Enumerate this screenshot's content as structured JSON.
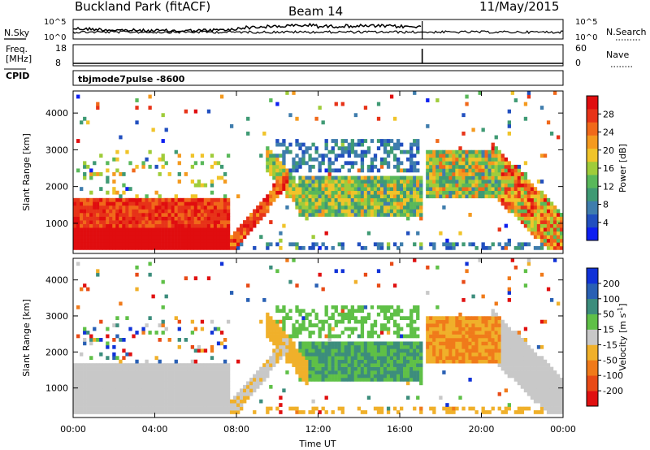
{
  "header": {
    "station": "Buckland Park (fitACF)",
    "beam": "Beam 14",
    "date": "11/May/2015"
  },
  "panel_labels": {
    "nsky": "N.Sky",
    "nsearch": "N.Search",
    "freq_line1": "Freq.",
    "freq_line2": "[MHz]",
    "nave": "Nave",
    "cpid": "CPID",
    "cpid_value": "tbjmode7pulse  -8600"
  },
  "chart_data": [
    {
      "type": "line",
      "name": "noise-panel",
      "left_ticks": [
        "10^5",
        "10^0"
      ],
      "right_ticks": [
        "10^5",
        "10^0"
      ],
      "ylabel_left": "N.Sky",
      "ylabel_right": "N.Search",
      "data_gap_utc": [
        17.1,
        17.25
      ],
      "description_note": ""
    },
    {
      "type": "line",
      "name": "freq-panel",
      "left_ticks": [
        18,
        8
      ],
      "right_ticks": [
        60,
        0
      ],
      "ylabel_left": "Freq. [MHz]",
      "ylabel_right": "Nave",
      "freq_mhz": 8,
      "nave": 0
    },
    {
      "type": "heatmap",
      "name": "power",
      "x": {
        "label": "Time UT",
        "range_hours": [
          0,
          24
        ],
        "tick_labels": [
          "00:00",
          "04:00",
          "08:00",
          "12:00",
          "16:00",
          "20:00",
          "00:00"
        ]
      },
      "y": {
        "label": "Slant Range [km]",
        "range_km": [
          180,
          4600
        ],
        "tick_values": [
          1000,
          2000,
          3000,
          4000
        ]
      },
      "colorbar": {
        "label": "Power [dB]",
        "range": [
          0,
          32
        ],
        "tick_values": [
          4,
          8,
          12,
          16,
          20,
          24,
          28
        ],
        "colors": [
          "#0d1ff0",
          "#214fbf",
          "#3f7dad",
          "#3f9a74",
          "#59b85a",
          "#9fcc3a",
          "#f0c42a",
          "#f49a1f",
          "#f0691a",
          "#e73318",
          "#e00d0f"
        ]
      }
    },
    {
      "type": "heatmap",
      "name": "velocity",
      "x": {
        "label": "Time UT",
        "range_hours": [
          0,
          24
        ],
        "tick_labels": [
          "00:00",
          "04:00",
          "08:00",
          "12:00",
          "16:00",
          "20:00",
          "00:00"
        ]
      },
      "y": {
        "label": "Slant Range [km]",
        "range_km": [
          180,
          4600
        ],
        "tick_values": [
          1000,
          2000,
          3000,
          4000
        ]
      },
      "colorbar": {
        "label": "Velocity [m s-1]",
        "tick_labels": [
          "200",
          "100",
          "50",
          "15",
          "-15",
          "-50",
          "-100",
          "-200"
        ],
        "colors": [
          "#1032d8",
          "#2960b4",
          "#3c8d7c",
          "#5fc047",
          "#c8c8c8",
          "#f0b02a",
          "#f07a1a",
          "#e84a16",
          "#e01010"
        ]
      }
    }
  ]
}
